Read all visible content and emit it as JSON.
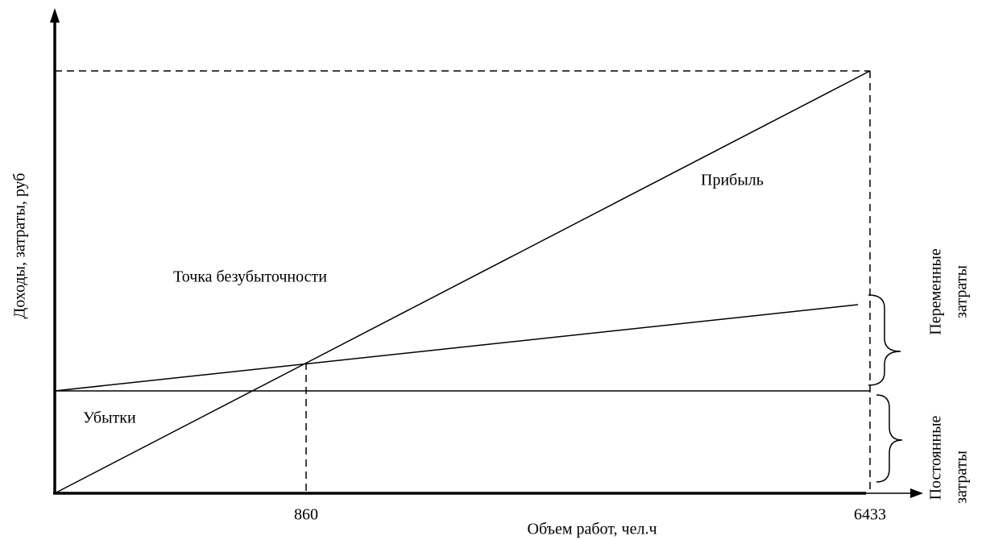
{
  "labels": {
    "profit": "Прибыль",
    "break_even": "Точка безубыточности",
    "losses": "Убытки"
  },
  "x_axis": {
    "label": "Объем работ, чел.ч",
    "ticks": [
      "860",
      "6433"
    ]
  },
  "y_axis": {
    "label": "Доходы, затраты, руб"
  },
  "brackets": [
    {
      "lines": [
        "Переменные",
        "затраты"
      ]
    },
    {
      "lines": [
        "Постоянные",
        "затраты"
      ]
    }
  ]
}
